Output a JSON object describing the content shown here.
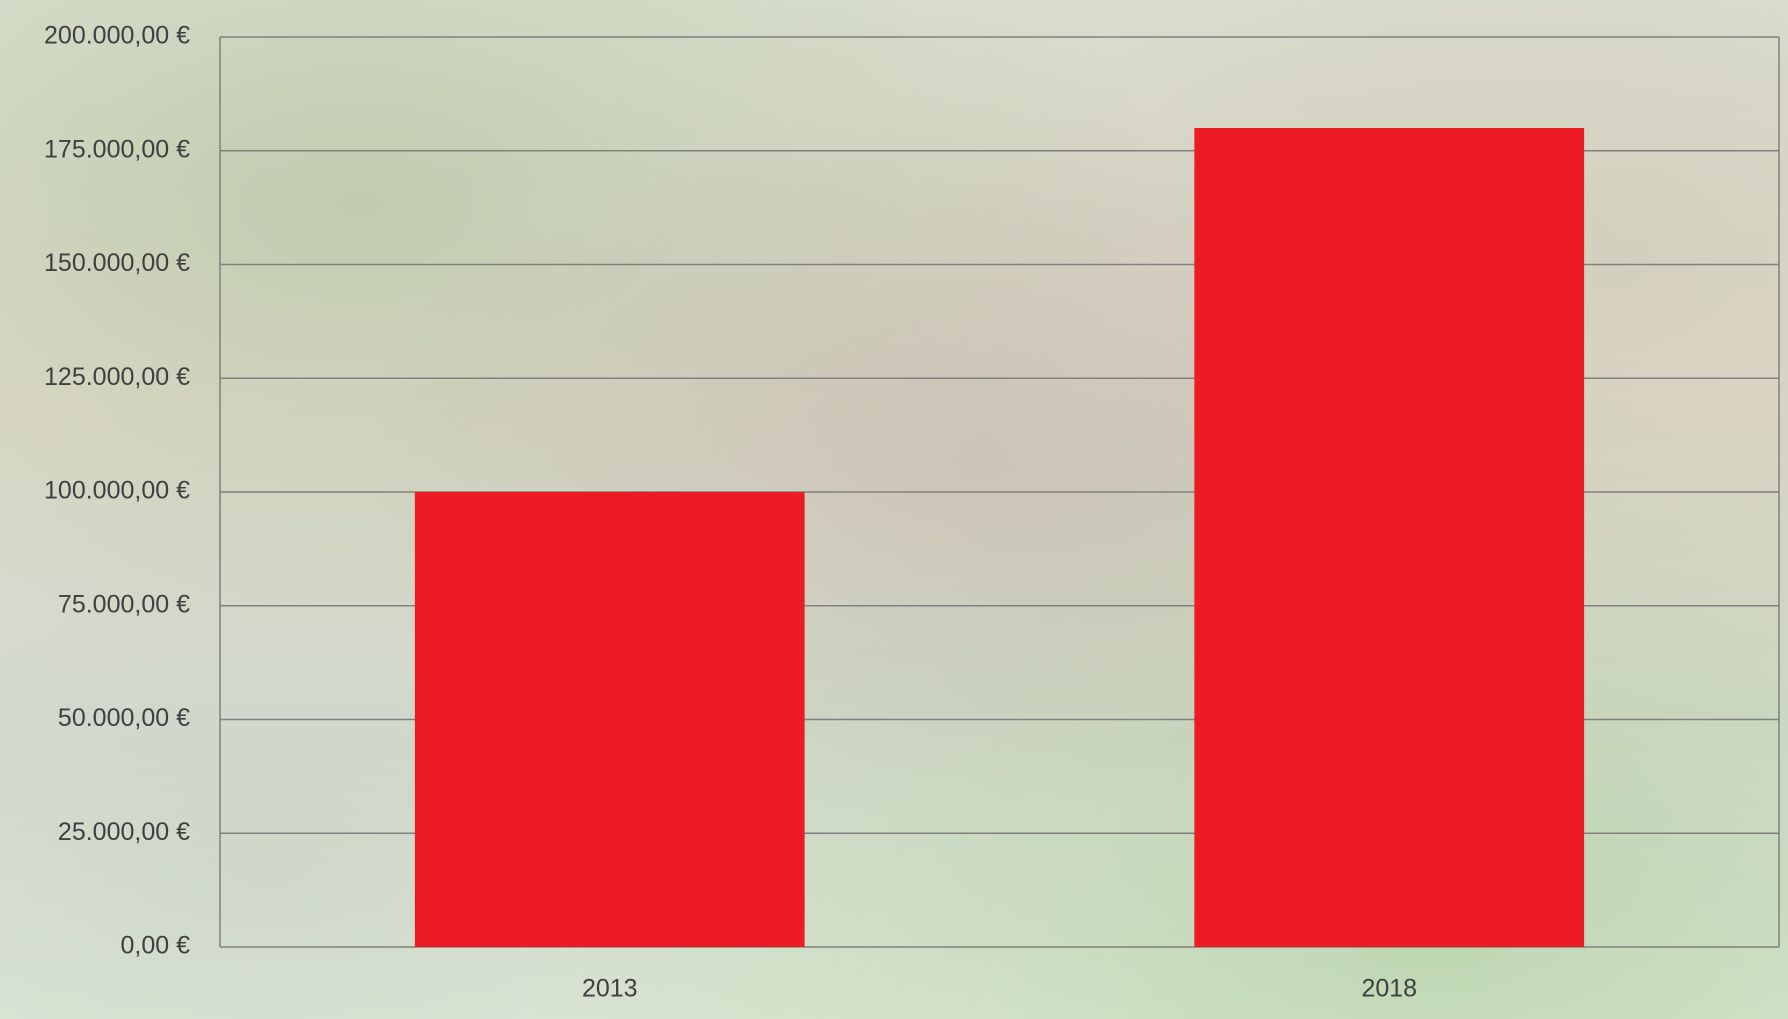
{
  "chart_data": {
    "type": "bar",
    "categories": [
      "2013",
      "2018"
    ],
    "values": [
      100000,
      180000
    ],
    "color": "#ed1c24",
    "ylim": [
      0,
      200000
    ],
    "yticks": [
      {
        "value": 0,
        "label": "0,00 €"
      },
      {
        "value": 25000,
        "label": "25.000,00 €"
      },
      {
        "value": 50000,
        "label": "50.000,00 €"
      },
      {
        "value": 75000,
        "label": "75.000,00 €"
      },
      {
        "value": 100000,
        "label": "100.000,00 €"
      },
      {
        "value": 125000,
        "label": "125.000,00 €"
      },
      {
        "value": 150000,
        "label": "150.000,00 €"
      },
      {
        "value": 175000,
        "label": "175.000,00 €"
      },
      {
        "value": 200000,
        "label": "200.000,00 €"
      }
    ],
    "grid": true
  }
}
